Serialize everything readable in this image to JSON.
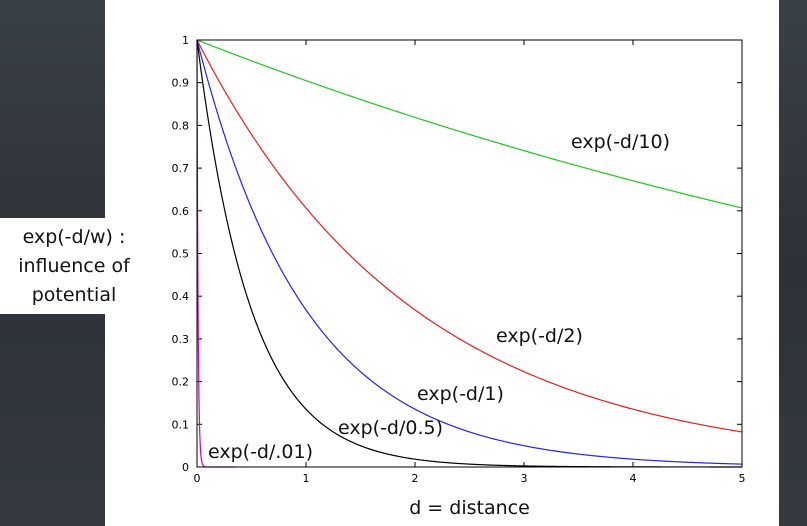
{
  "chart_data": {
    "type": "line",
    "title": "",
    "xlabel": "d = distance",
    "ylabel": "exp(-d/w) :\ninfluence of\npotential",
    "xlim": [
      0,
      5
    ],
    "ylim": [
      0,
      1
    ],
    "xticks": [
      "0",
      "1",
      "2",
      "3",
      "4",
      "5"
    ],
    "yticks": [
      "0",
      "0.1",
      "0.2",
      "0.3",
      "0.4",
      "0.5",
      "0.6",
      "0.7",
      "0.8",
      "0.9",
      "1"
    ],
    "grid": false,
    "legend": "none",
    "series": [
      {
        "name": "exp(-d/10)",
        "w": 10,
        "color": "#22c322",
        "x": [
          0,
          1,
          2,
          3,
          4,
          5
        ],
        "y": [
          1,
          0.905,
          0.819,
          0.741,
          0.67,
          0.607
        ]
      },
      {
        "name": "exp(-d/2)",
        "w": 2,
        "color": "#e02020",
        "x": [
          0,
          1,
          2,
          3,
          4,
          5
        ],
        "y": [
          1,
          0.607,
          0.368,
          0.223,
          0.135,
          0.082
        ]
      },
      {
        "name": "exp(-d/1)",
        "w": 1,
        "color": "#2424e0",
        "x": [
          0,
          1,
          2,
          3,
          4,
          5
        ],
        "y": [
          1,
          0.368,
          0.135,
          0.05,
          0.018,
          0.007
        ]
      },
      {
        "name": "exp(-d/0.5)",
        "w": 0.5,
        "color": "#000000",
        "x": [
          0,
          1,
          2,
          3,
          4,
          5
        ],
        "y": [
          1,
          0.135,
          0.018,
          0.002,
          0.0003,
          5e-05
        ]
      },
      {
        "name": "exp(-d/.01)",
        "w": 0.01,
        "color": "#c000c0",
        "x": [
          0,
          0.01,
          0.02,
          0.05,
          0.1
        ],
        "y": [
          1,
          0.368,
          0.135,
          0.007,
          5e-05
        ]
      }
    ]
  }
}
